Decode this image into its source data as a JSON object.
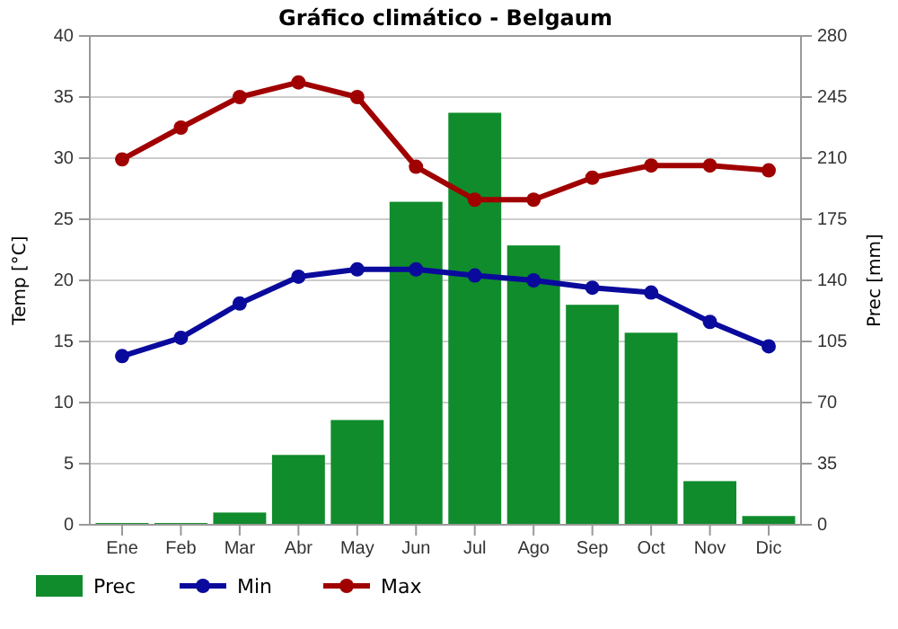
{
  "chart_data": {
    "type": "bar",
    "title": "Gráfico climático - Belgaum",
    "ylabel": "Temp [°C]",
    "y2label": "Prec [mm]",
    "categories": [
      "Ene",
      "Feb",
      "Mar",
      "Abr",
      "May",
      "Jun",
      "Jul",
      "Ago",
      "Sep",
      "Oct",
      "Nov",
      "Dic"
    ],
    "series": [
      {
        "name": "Prec",
        "axis": "y2",
        "color": "#108c2c",
        "values": [
          1,
          1,
          7,
          40,
          60,
          185,
          236,
          160,
          126,
          110,
          25,
          5
        ]
      },
      {
        "name": "Min",
        "type": "line",
        "color": "#0a0a9c",
        "values": [
          13.8,
          15.3,
          18.1,
          20.3,
          20.9,
          20.9,
          20.4,
          20,
          19.4,
          19,
          16.6,
          14.6
        ]
      },
      {
        "name": "Max",
        "type": "line",
        "color": "#a00000",
        "values": [
          29.9,
          32.5,
          35,
          36.2,
          35,
          29.3,
          26.6,
          26.6,
          28.4,
          29.4,
          29.4,
          29
        ]
      }
    ],
    "ylim": [
      0,
      40
    ],
    "yticks": [
      0,
      5,
      10,
      15,
      20,
      25,
      30,
      35,
      40
    ],
    "y2lim": [
      0,
      280
    ],
    "y2ticks": [
      0,
      35,
      70,
      105,
      140,
      175,
      210,
      245,
      280
    ],
    "grid": "y",
    "legend": "bottom",
    "marker": "circle",
    "line_style": "solid"
  }
}
